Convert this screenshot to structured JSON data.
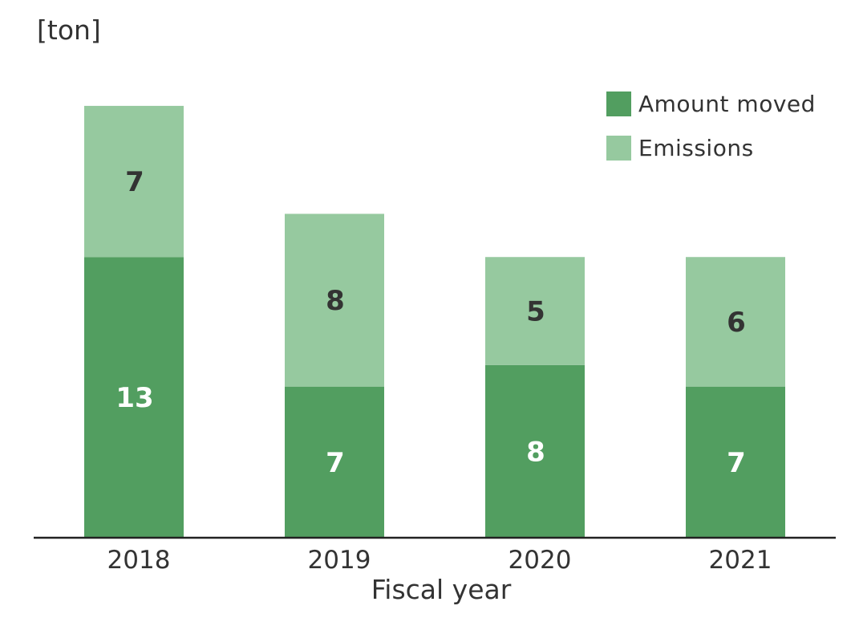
{
  "chart_data": {
    "type": "bar",
    "stacked": true,
    "unit": "[ton]",
    "xlabel": "Fiscal year",
    "categories": [
      "2018",
      "2019",
      "2020",
      "2021"
    ],
    "series": [
      {
        "name": "Amount moved",
        "values": [
          13,
          7,
          8,
          7
        ],
        "color": "#529e60",
        "label_color": "#ffffff"
      },
      {
        "name": "Emissions",
        "values": [
          7,
          8,
          5,
          6
        ],
        "color": "#96c99f",
        "label_color": "#333333"
      }
    ],
    "ylim": [
      0,
      21
    ],
    "grid": false,
    "legend_position": "top-right"
  }
}
